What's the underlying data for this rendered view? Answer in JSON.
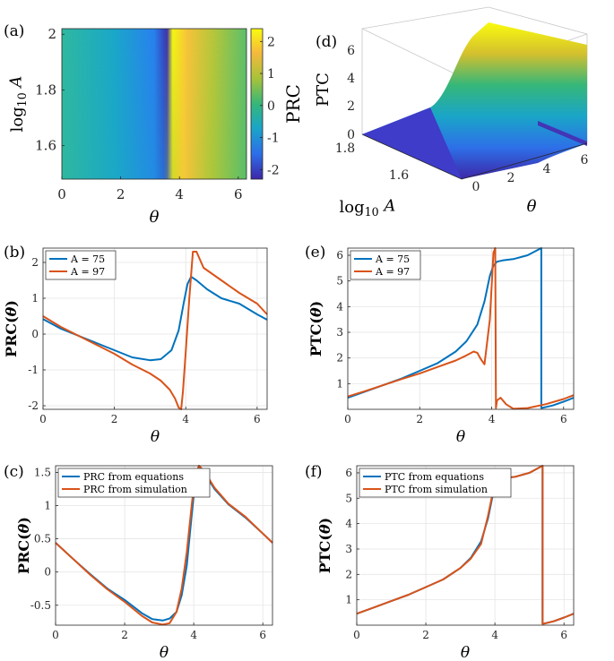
{
  "chart_data": [
    {
      "panel": "(a)",
      "type": "heatmap",
      "xlabel": "θ",
      "ylabel": "log₁₀ A",
      "xlim": [
        0,
        6.28
      ],
      "ylim": [
        1.48,
        2.02
      ],
      "xticks": [
        "0",
        "2",
        "4",
        "6"
      ],
      "yticks": [
        "1.6",
        "1.8",
        "2"
      ],
      "colorbar": {
        "label": "PRC",
        "range": [
          -2.3,
          2.4
        ],
        "ticks": [
          "2",
          "1",
          "0",
          "-1",
          "-2"
        ]
      },
      "colormap": [
        "#3e26a8",
        "#2d6fe8",
        "#1aa5c8",
        "#35b779",
        "#a8c23a",
        "#f6b93c",
        "#f9fb0e"
      ]
    },
    {
      "panel": "(d)",
      "type": "area",
      "surface": true,
      "xlabel": "θ",
      "ylabel": "log₁₀ A",
      "zlabel": "PTC",
      "xticks": [
        "0",
        "2",
        "4",
        "6"
      ],
      "yticks": [
        "1.6",
        "1.8"
      ],
      "zticks": [
        "0",
        "2",
        "4",
        "6"
      ]
    },
    {
      "panel": "(b)",
      "type": "line",
      "xlabel": "θ",
      "ylabel": "PRC(θ)",
      "xlim": [
        0,
        6.28
      ],
      "ylim": [
        -2.1,
        2.4
      ],
      "xticks": [
        0,
        2,
        4,
        6
      ],
      "yticks": [
        -2,
        -1,
        0,
        1,
        2
      ],
      "grid": true,
      "legend": "top-left",
      "series": [
        {
          "name": "A = 75",
          "color": "#0072BD",
          "x": [
            0,
            0.5,
            1,
            1.5,
            2,
            2.5,
            3,
            3.3,
            3.6,
            3.8,
            3.95,
            4.05,
            4.15,
            4.3,
            4.6,
            5,
            5.5,
            6,
            6.28
          ],
          "y": [
            0.42,
            0.15,
            -0.05,
            -0.25,
            -0.45,
            -0.65,
            -0.73,
            -0.7,
            -0.45,
            0.1,
            0.9,
            1.4,
            1.6,
            1.5,
            1.25,
            1.0,
            0.85,
            0.55,
            0.4
          ]
        },
        {
          "name": "A = 97",
          "color": "#D95319",
          "x": [
            0,
            0.5,
            1,
            1.5,
            2,
            2.5,
            3,
            3.3,
            3.55,
            3.7,
            3.8,
            3.87,
            3.92,
            4.0,
            4.1,
            4.2,
            4.3,
            4.5,
            5,
            5.5,
            6,
            6.28
          ],
          "y": [
            0.5,
            0.2,
            -0.05,
            -0.3,
            -0.55,
            -0.85,
            -1.1,
            -1.3,
            -1.55,
            -1.8,
            -2.05,
            -2.1,
            -1.6,
            -0.5,
            1.0,
            2.3,
            2.3,
            1.85,
            1.5,
            1.15,
            0.85,
            0.55
          ]
        }
      ]
    },
    {
      "panel": "(e)",
      "type": "line",
      "xlabel": "θ",
      "ylabel": "PTC(θ)",
      "xlim": [
        0,
        6.28
      ],
      "ylim": [
        0,
        6.28
      ],
      "xticks": [
        0,
        2,
        4,
        6
      ],
      "yticks": [
        1,
        2,
        3,
        4,
        5,
        6
      ],
      "grid": true,
      "legend": "top-left",
      "series": [
        {
          "name": "A = 75",
          "color": "#0072BD",
          "x": [
            0,
            0.5,
            1,
            1.5,
            2,
            2.5,
            3,
            3.3,
            3.6,
            3.8,
            3.95,
            4.05,
            4.15,
            4.3,
            4.6,
            5,
            5.38,
            5.38,
            5.7,
            6,
            6.28
          ],
          "y": [
            0.45,
            0.7,
            0.95,
            1.2,
            1.5,
            1.8,
            2.25,
            2.65,
            3.3,
            4.2,
            5.2,
            5.6,
            5.75,
            5.8,
            5.85,
            6.0,
            6.28,
            0.05,
            0.15,
            0.3,
            0.45
          ]
        },
        {
          "name": "A = 97",
          "color": "#D95319",
          "x": [
            0,
            0.5,
            1,
            1.5,
            2,
            2.5,
            3,
            3.3,
            3.5,
            3.6,
            3.7,
            3.8,
            3.95,
            4.05,
            4.1,
            4.12,
            4.15,
            4.25,
            4.4,
            4.6,
            5,
            5.5,
            6,
            6.28
          ],
          "y": [
            0.5,
            0.72,
            0.95,
            1.18,
            1.4,
            1.65,
            1.9,
            2.1,
            2.25,
            2.2,
            1.95,
            1.75,
            3.5,
            6.1,
            6.28,
            0.05,
            0.35,
            0.45,
            0.2,
            0.02,
            0.05,
            0.2,
            0.4,
            0.55
          ]
        }
      ]
    },
    {
      "panel": "(c)",
      "type": "line",
      "xlabel": "θ",
      "ylabel": "PRC(θ)",
      "xlim": [
        0,
        6.28
      ],
      "ylim": [
        -0.8,
        1.6
      ],
      "xticks": [
        0,
        2,
        4,
        6
      ],
      "yticks": [
        -0.5,
        0,
        0.5,
        1,
        1.5
      ],
      "grid": true,
      "legend": "top-left",
      "series": [
        {
          "name": "PRC from equations",
          "color": "#0072BD",
          "x": [
            0,
            0.5,
            1,
            1.5,
            2,
            2.5,
            2.8,
            3.1,
            3.3,
            3.5,
            3.65,
            3.8,
            3.95,
            4.05,
            4.15,
            4.3,
            4.6,
            5,
            5.5,
            6,
            6.28
          ],
          "y": [
            0.44,
            0.2,
            -0.03,
            -0.25,
            -0.42,
            -0.62,
            -0.71,
            -0.73,
            -0.7,
            -0.6,
            -0.35,
            0.1,
            0.9,
            1.4,
            1.6,
            1.5,
            1.25,
            1.02,
            0.82,
            0.58,
            0.44
          ]
        },
        {
          "name": "PRC from simulation",
          "color": "#D95319",
          "x": [
            0,
            0.5,
            1,
            1.5,
            2,
            2.5,
            2.8,
            3.1,
            3.3,
            3.5,
            3.65,
            3.8,
            3.95,
            4.05,
            4.15,
            4.3,
            4.6,
            5,
            5.5,
            6,
            6.28
          ],
          "y": [
            0.44,
            0.2,
            -0.04,
            -0.26,
            -0.45,
            -0.66,
            -0.76,
            -0.79,
            -0.77,
            -0.6,
            -0.25,
            0.3,
            1.05,
            1.45,
            1.6,
            1.52,
            1.27,
            1.03,
            0.83,
            0.58,
            0.44
          ]
        }
      ]
    },
    {
      "panel": "(f)",
      "type": "line",
      "xlabel": "θ",
      "ylabel": "PTC(θ)",
      "xlim": [
        0,
        6.28
      ],
      "ylim": [
        0,
        6.28
      ],
      "xticks": [
        0,
        2,
        4,
        6
      ],
      "yticks": [
        1,
        2,
        3,
        4,
        5,
        6
      ],
      "grid": true,
      "legend": "top-left",
      "series": [
        {
          "name": "PTC from equations",
          "color": "#0072BD",
          "x": [
            0,
            0.5,
            1,
            1.5,
            2,
            2.5,
            3,
            3.3,
            3.6,
            3.8,
            3.95,
            4.05,
            4.15,
            4.3,
            4.6,
            5,
            5.38,
            5.38,
            5.7,
            6,
            6.28
          ],
          "y": [
            0.45,
            0.7,
            0.95,
            1.2,
            1.5,
            1.8,
            2.25,
            2.65,
            3.3,
            4.2,
            5.2,
            5.6,
            5.75,
            5.8,
            5.85,
            6.0,
            6.28,
            0.05,
            0.15,
            0.3,
            0.45
          ]
        },
        {
          "name": "PTC from simulation",
          "color": "#D95319",
          "x": [
            0,
            0.5,
            1,
            1.5,
            2,
            2.5,
            3,
            3.3,
            3.6,
            3.8,
            3.95,
            4.05,
            4.15,
            4.3,
            4.6,
            5,
            5.38,
            5.38,
            5.7,
            6,
            6.28
          ],
          "y": [
            0.45,
            0.7,
            0.95,
            1.2,
            1.5,
            1.8,
            2.25,
            2.62,
            3.2,
            4.3,
            5.3,
            5.62,
            5.75,
            5.8,
            5.85,
            6.0,
            6.28,
            0.05,
            0.15,
            0.3,
            0.45
          ]
        }
      ]
    }
  ]
}
